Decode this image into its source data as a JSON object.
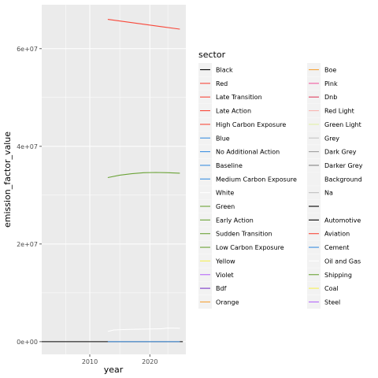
{
  "chart_data": {
    "type": "line",
    "xlabel": "year",
    "ylabel": "emission_factor_value",
    "xlim": [
      2002,
      2026
    ],
    "ylim": [
      -2600000,
      69000000
    ],
    "x_ticks": [
      2010,
      2020
    ],
    "x_tick_labels": [
      "2010",
      "2020"
    ],
    "y_ticks": [
      0,
      20000000,
      40000000,
      60000000
    ],
    "y_tick_labels": [
      "0e+00",
      "2e+07",
      "4e+07",
      "6e+07"
    ],
    "grid": true,
    "legend": {
      "title": "sector",
      "placement": "right",
      "columns": 2,
      "entries": [
        {
          "label": "Black",
          "color": "#000000"
        },
        {
          "label": "Red",
          "color": "#F8483A"
        },
        {
          "label": "Late Transition",
          "color": "#F8483A"
        },
        {
          "label": "Late Action",
          "color": "#F8483A"
        },
        {
          "label": "High Carbon Exposure",
          "color": "#F8483A"
        },
        {
          "label": "Blue",
          "color": "#3C8FE0"
        },
        {
          "label": "No Additional Action",
          "color": "#3C8FE0"
        },
        {
          "label": "Baseline",
          "color": "#3C8FE0"
        },
        {
          "label": "Medium Carbon Exposure",
          "color": "#3C8FE0"
        },
        {
          "label": "White",
          "color": "#FFFFFF"
        },
        {
          "label": "Green",
          "color": "#6BA337"
        },
        {
          "label": "Early Action",
          "color": "#6BA337"
        },
        {
          "label": "Sudden Transition",
          "color": "#6BA337"
        },
        {
          "label": "Low Carbon Exposure",
          "color": "#6BA337"
        },
        {
          "label": "Yellow",
          "color": "#F5F057"
        },
        {
          "label": "Violet",
          "color": "#B569FA"
        },
        {
          "label": "Bdf",
          "color": "#7A38C8"
        },
        {
          "label": "Orange",
          "color": "#F5A23A"
        },
        {
          "label": "Boe",
          "color": "#F5A23A"
        },
        {
          "label": "Pink",
          "color": "#F15AA0"
        },
        {
          "label": "Dnb",
          "color": "#E04060"
        },
        {
          "label": "Red Light",
          "color": "#F8B6B2"
        },
        {
          "label": "Green Light",
          "color": "#E1F0A6"
        },
        {
          "label": "Grey",
          "color": "#C4C4C4"
        },
        {
          "label": "Dark Grey",
          "color": "#9E9E9E"
        },
        {
          "label": "Darker Grey",
          "color": "#808080"
        },
        {
          "label": "Background",
          "color": "#F2F2F2"
        },
        {
          "label": "Na",
          "color": "#BFBFBF"
        },
        {
          "label": "",
          "color": "#000000"
        },
        {
          "label": "Automotive",
          "color": "#000000"
        },
        {
          "label": "Aviation",
          "color": "#F8483A"
        },
        {
          "label": "Cement",
          "color": "#3C8FE0"
        },
        {
          "label": "Oil and Gas",
          "color": "#FFFFFF"
        },
        {
          "label": "Shipping",
          "color": "#6BA337"
        },
        {
          "label": "Coal",
          "color": "#F5F057"
        },
        {
          "label": "Steel",
          "color": "#B569FA"
        }
      ]
    },
    "series": [
      {
        "label": "Automotive",
        "color": "#000000",
        "x": [
          2002,
          2025.5
        ],
        "y": [
          0,
          0
        ]
      },
      {
        "label": "Cement",
        "color": "#3C8FE0",
        "x": [
          2013,
          2025
        ],
        "y": [
          0,
          0
        ]
      },
      {
        "label": "Aviation",
        "color": "#F8483A",
        "x": [
          2013,
          2016,
          2019,
          2022,
          2025
        ],
        "y": [
          66000000,
          65500000,
          65000000,
          64500000,
          64000000
        ]
      },
      {
        "label": "Shipping",
        "color": "#6BA337",
        "x": [
          2013,
          2015,
          2017,
          2019,
          2021,
          2023,
          2025
        ],
        "y": [
          33600000,
          34100000,
          34400000,
          34600000,
          34650000,
          34600000,
          34500000
        ]
      },
      {
        "label": "Oil and Gas",
        "color": "#FFFFFF",
        "x": [
          2013,
          2014,
          2016,
          2018,
          2020,
          2022,
          2023,
          2025
        ],
        "y": [
          2100000,
          2400000,
          2500000,
          2550000,
          2600000,
          2650000,
          2800000,
          2750000
        ]
      }
    ]
  }
}
